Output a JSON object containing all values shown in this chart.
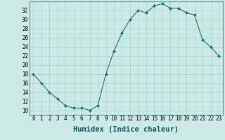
{
  "x": [
    0,
    1,
    2,
    3,
    4,
    5,
    6,
    7,
    8,
    9,
    10,
    11,
    12,
    13,
    14,
    15,
    16,
    17,
    18,
    19,
    20,
    21,
    22,
    23
  ],
  "y": [
    18,
    16,
    14,
    12.5,
    11,
    10.5,
    10.5,
    10,
    11,
    18,
    23,
    27,
    30,
    32,
    31.5,
    33,
    33.5,
    32.5,
    32.5,
    31.5,
    31,
    25.5,
    24,
    22
  ],
  "line_color": "#1a7a6e",
  "marker": "D",
  "marker_size": 2.0,
  "bg_color": "#cce9e5",
  "grid_color": "#aad4cf",
  "xlabel": "Humidex (Indice chaleur)",
  "xlim": [
    -0.5,
    23.5
  ],
  "ylim": [
    9,
    34
  ],
  "yticks": [
    10,
    12,
    14,
    16,
    18,
    20,
    22,
    24,
    26,
    28,
    30,
    32
  ],
  "xticks": [
    0,
    1,
    2,
    3,
    4,
    5,
    6,
    7,
    8,
    9,
    10,
    11,
    12,
    13,
    14,
    15,
    16,
    17,
    18,
    19,
    20,
    21,
    22,
    23
  ],
  "xtick_labels": [
    "0",
    "1",
    "2",
    "3",
    "4",
    "5",
    "6",
    "7",
    "8",
    "9",
    "10",
    "11",
    "12",
    "13",
    "14",
    "15",
    "16",
    "17",
    "18",
    "19",
    "20",
    "21",
    "22",
    "23"
  ],
  "tick_label_fontsize": 5.5,
  "xlabel_fontsize": 7.5
}
